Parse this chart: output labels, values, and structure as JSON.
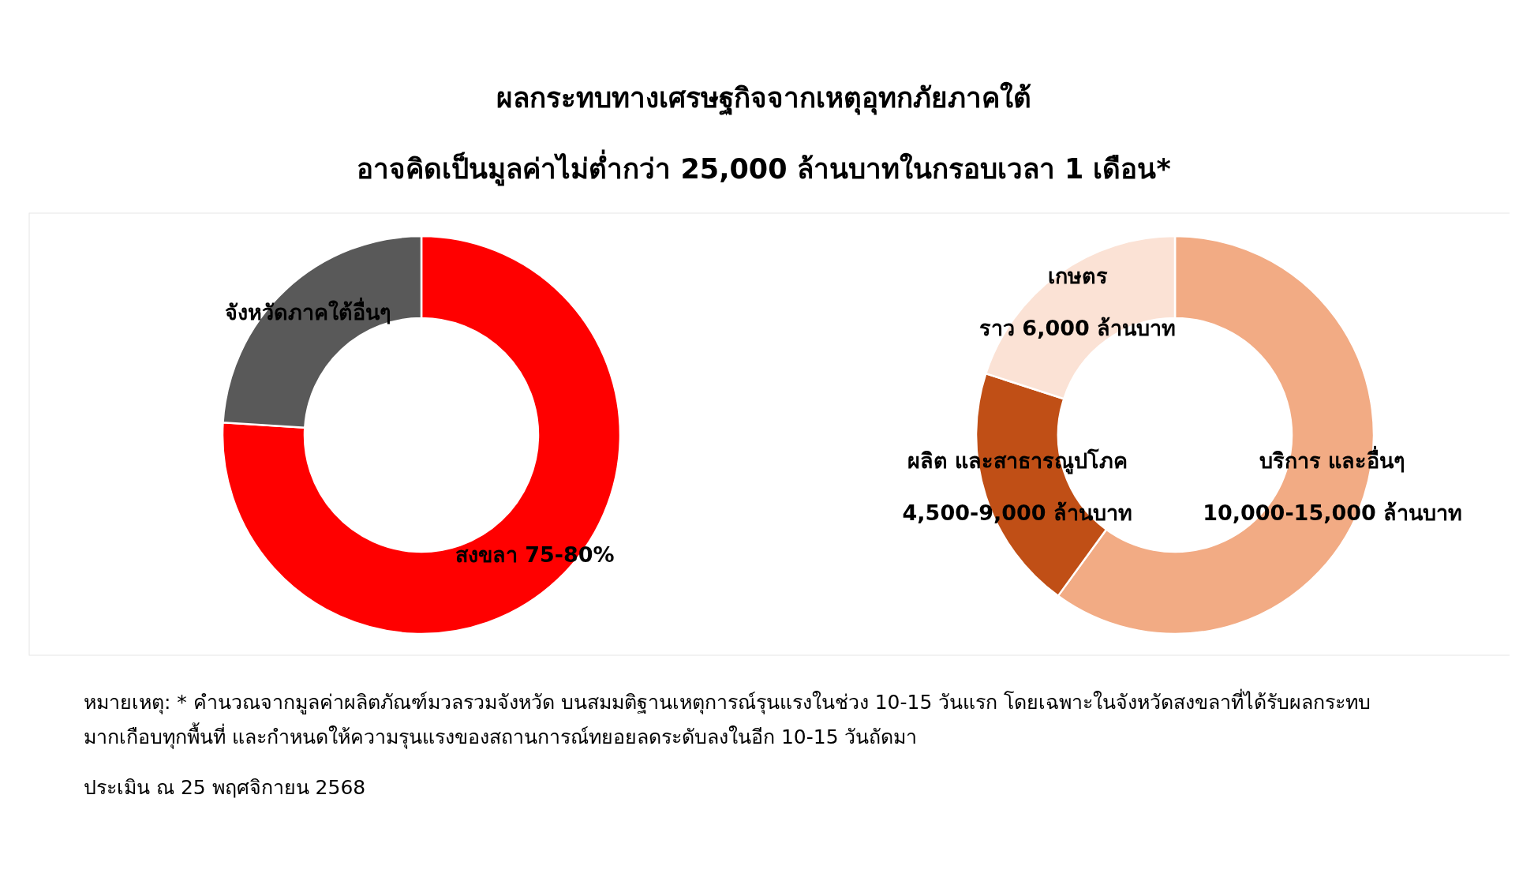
{
  "chart_data": [
    {
      "type": "donut",
      "title": "ผลกระทบทางเศรษฐกิจจากเหตุอุทกภัยภาคใต้",
      "subtitle": "อาจคิดเป็นมูลค่าไม่ต่ำกว่า 25,000 ล้านบาทในกรอบเวลา 1 เดือน*",
      "categories": [
        "สงขลา 75-80%",
        "จังหวัดภาคใต้อื่นๆ"
      ],
      "values": [
        76,
        24
      ],
      "colors": [
        "#ff0000",
        "#595959"
      ]
    },
    {
      "type": "donut",
      "categories": [
        "บริการ และอื่นๆ",
        "ผลิต และสาธารณูปโภค",
        "เกษตร"
      ],
      "values": [
        60,
        20,
        20
      ],
      "colors": [
        "#f2ab84",
        "#c04f16",
        "#fbe2d5"
      ],
      "value_labels": [
        "10,000-15,000 ล้านบาท",
        "4,500-9,000 ล้านบาท",
        "ราว 6,000 ล้านบาท"
      ],
      "annotations": [
        "หมายเหตุ: * คำนวณจากมูลค่าผลิตภัณฑ์มวลรวมจังหวัด บนสมมติฐานเหตุการณ์รุนแรงในช่วง 10-15 วันแรก โดยเฉพาะในจังหวัดสงขลาที่ได้รับผลกระทบมากเกือบทุกพื้นที่ และกำหนดให้ความรุนแรงของสถานการณ์ทยอยลดระดับลงในอีก 10-15 วันถัดมา",
        "ประเมิน ณ 25 พฤศจิกายน 2568"
      ]
    }
  ]
}
